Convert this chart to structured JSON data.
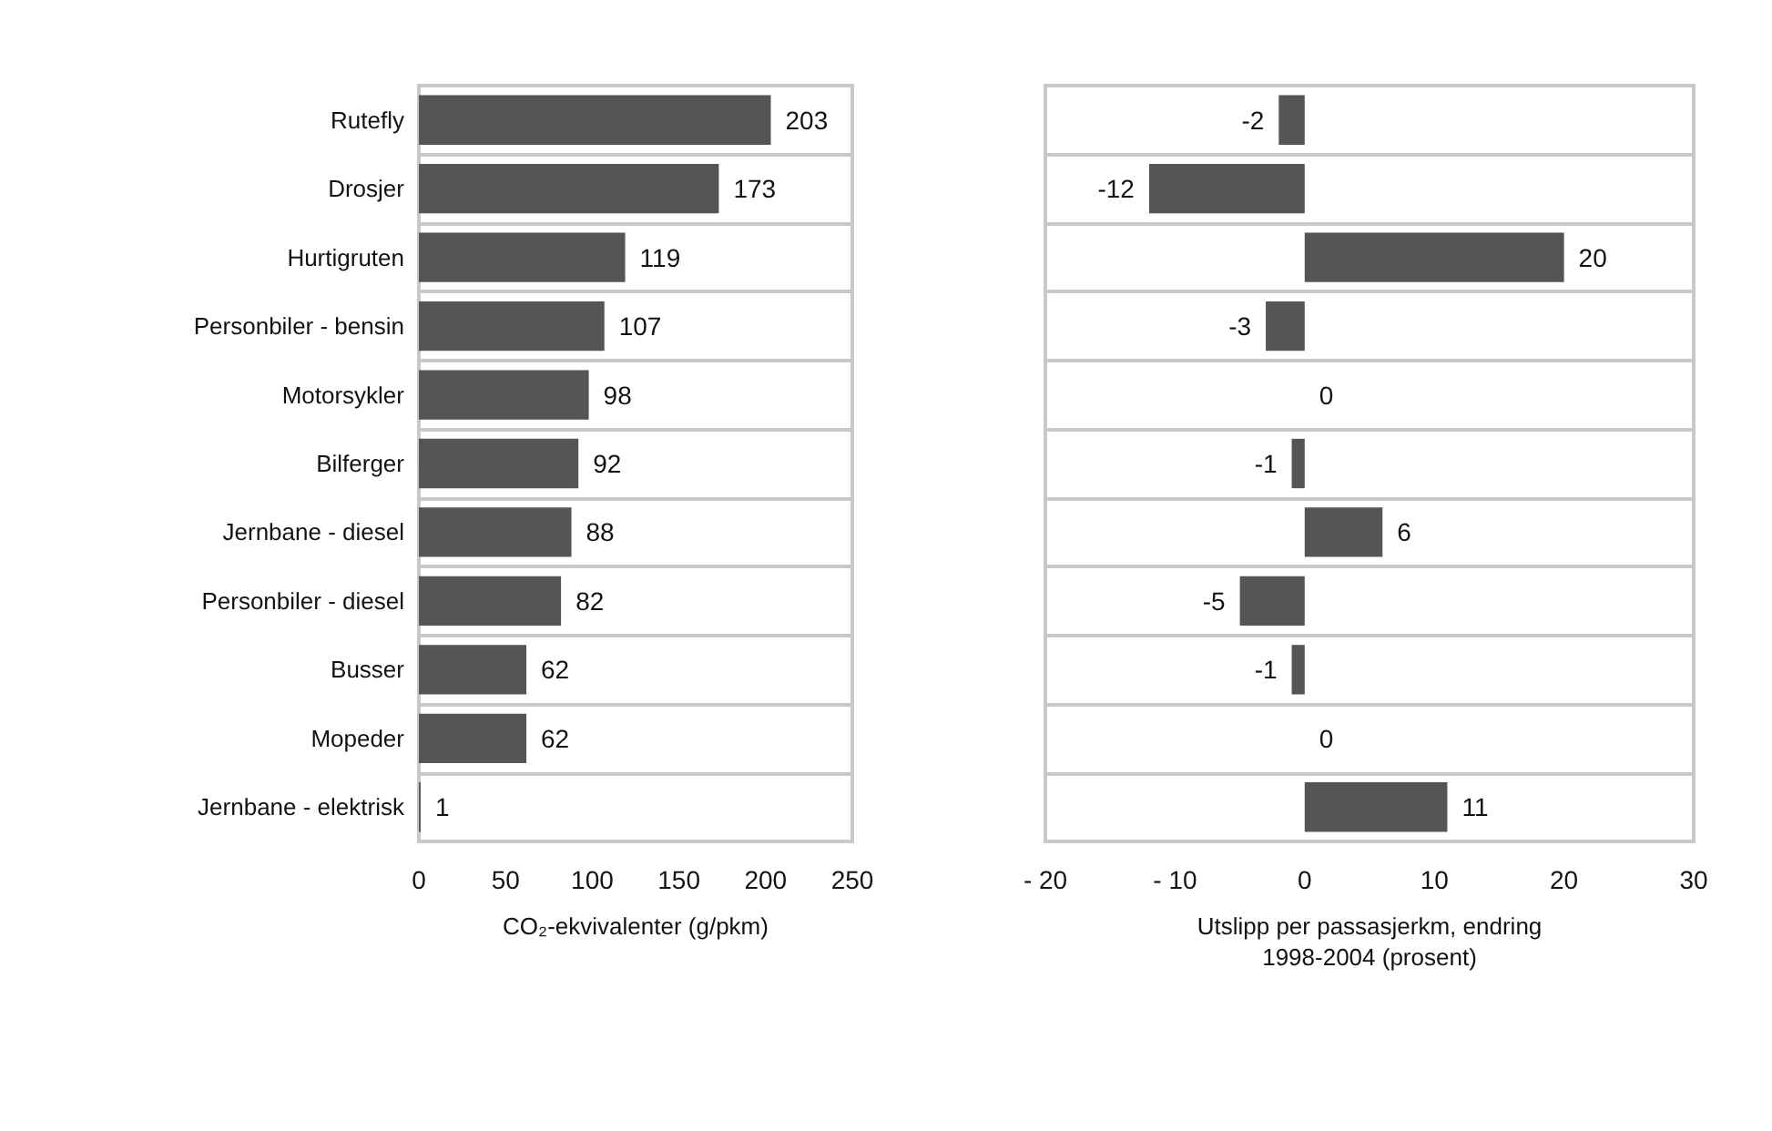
{
  "chart_data": [
    {
      "type": "bar",
      "orientation": "horizontal",
      "categories": [
        "Rutefly",
        "Drosjer",
        "Hurtigruten",
        "Personbiler - bensin",
        "Motorsykler",
        "Bilferger",
        "Jernbane - diesel",
        "Personbiler - diesel",
        "Busser",
        "Mopeder",
        "Jernbane - elektrisk"
      ],
      "values": [
        203,
        173,
        119,
        107,
        98,
        92,
        88,
        82,
        62,
        62,
        1
      ],
      "color": "#555555",
      "xlabel": "CO₂-ekvivalenter (g/pkm)",
      "xlim": [
        0,
        250
      ],
      "xticks": [
        0,
        50,
        100,
        150,
        200,
        250
      ],
      "data_labels": true,
      "grid": "y"
    },
    {
      "type": "bar",
      "orientation": "horizontal",
      "categories": [
        null,
        null,
        null,
        null,
        null,
        null,
        null,
        null,
        null,
        null,
        null
      ],
      "values": [
        -2,
        -12,
        20,
        -3,
        0,
        -1,
        6,
        -5,
        -1,
        0,
        11
      ],
      "color": "#555555",
      "xlabel": "Utslipp per passasjerkm, endring\n1998-2004 (prosent)",
      "xlim": [
        -20,
        30
      ],
      "xticks": [
        {
          "value": -20,
          "label": "- 20"
        },
        {
          "value": -10,
          "label": "- 10"
        },
        0,
        10,
        20,
        30
      ],
      "data_labels": true,
      "grid": "y",
      "tick_labels": "x"
    }
  ]
}
